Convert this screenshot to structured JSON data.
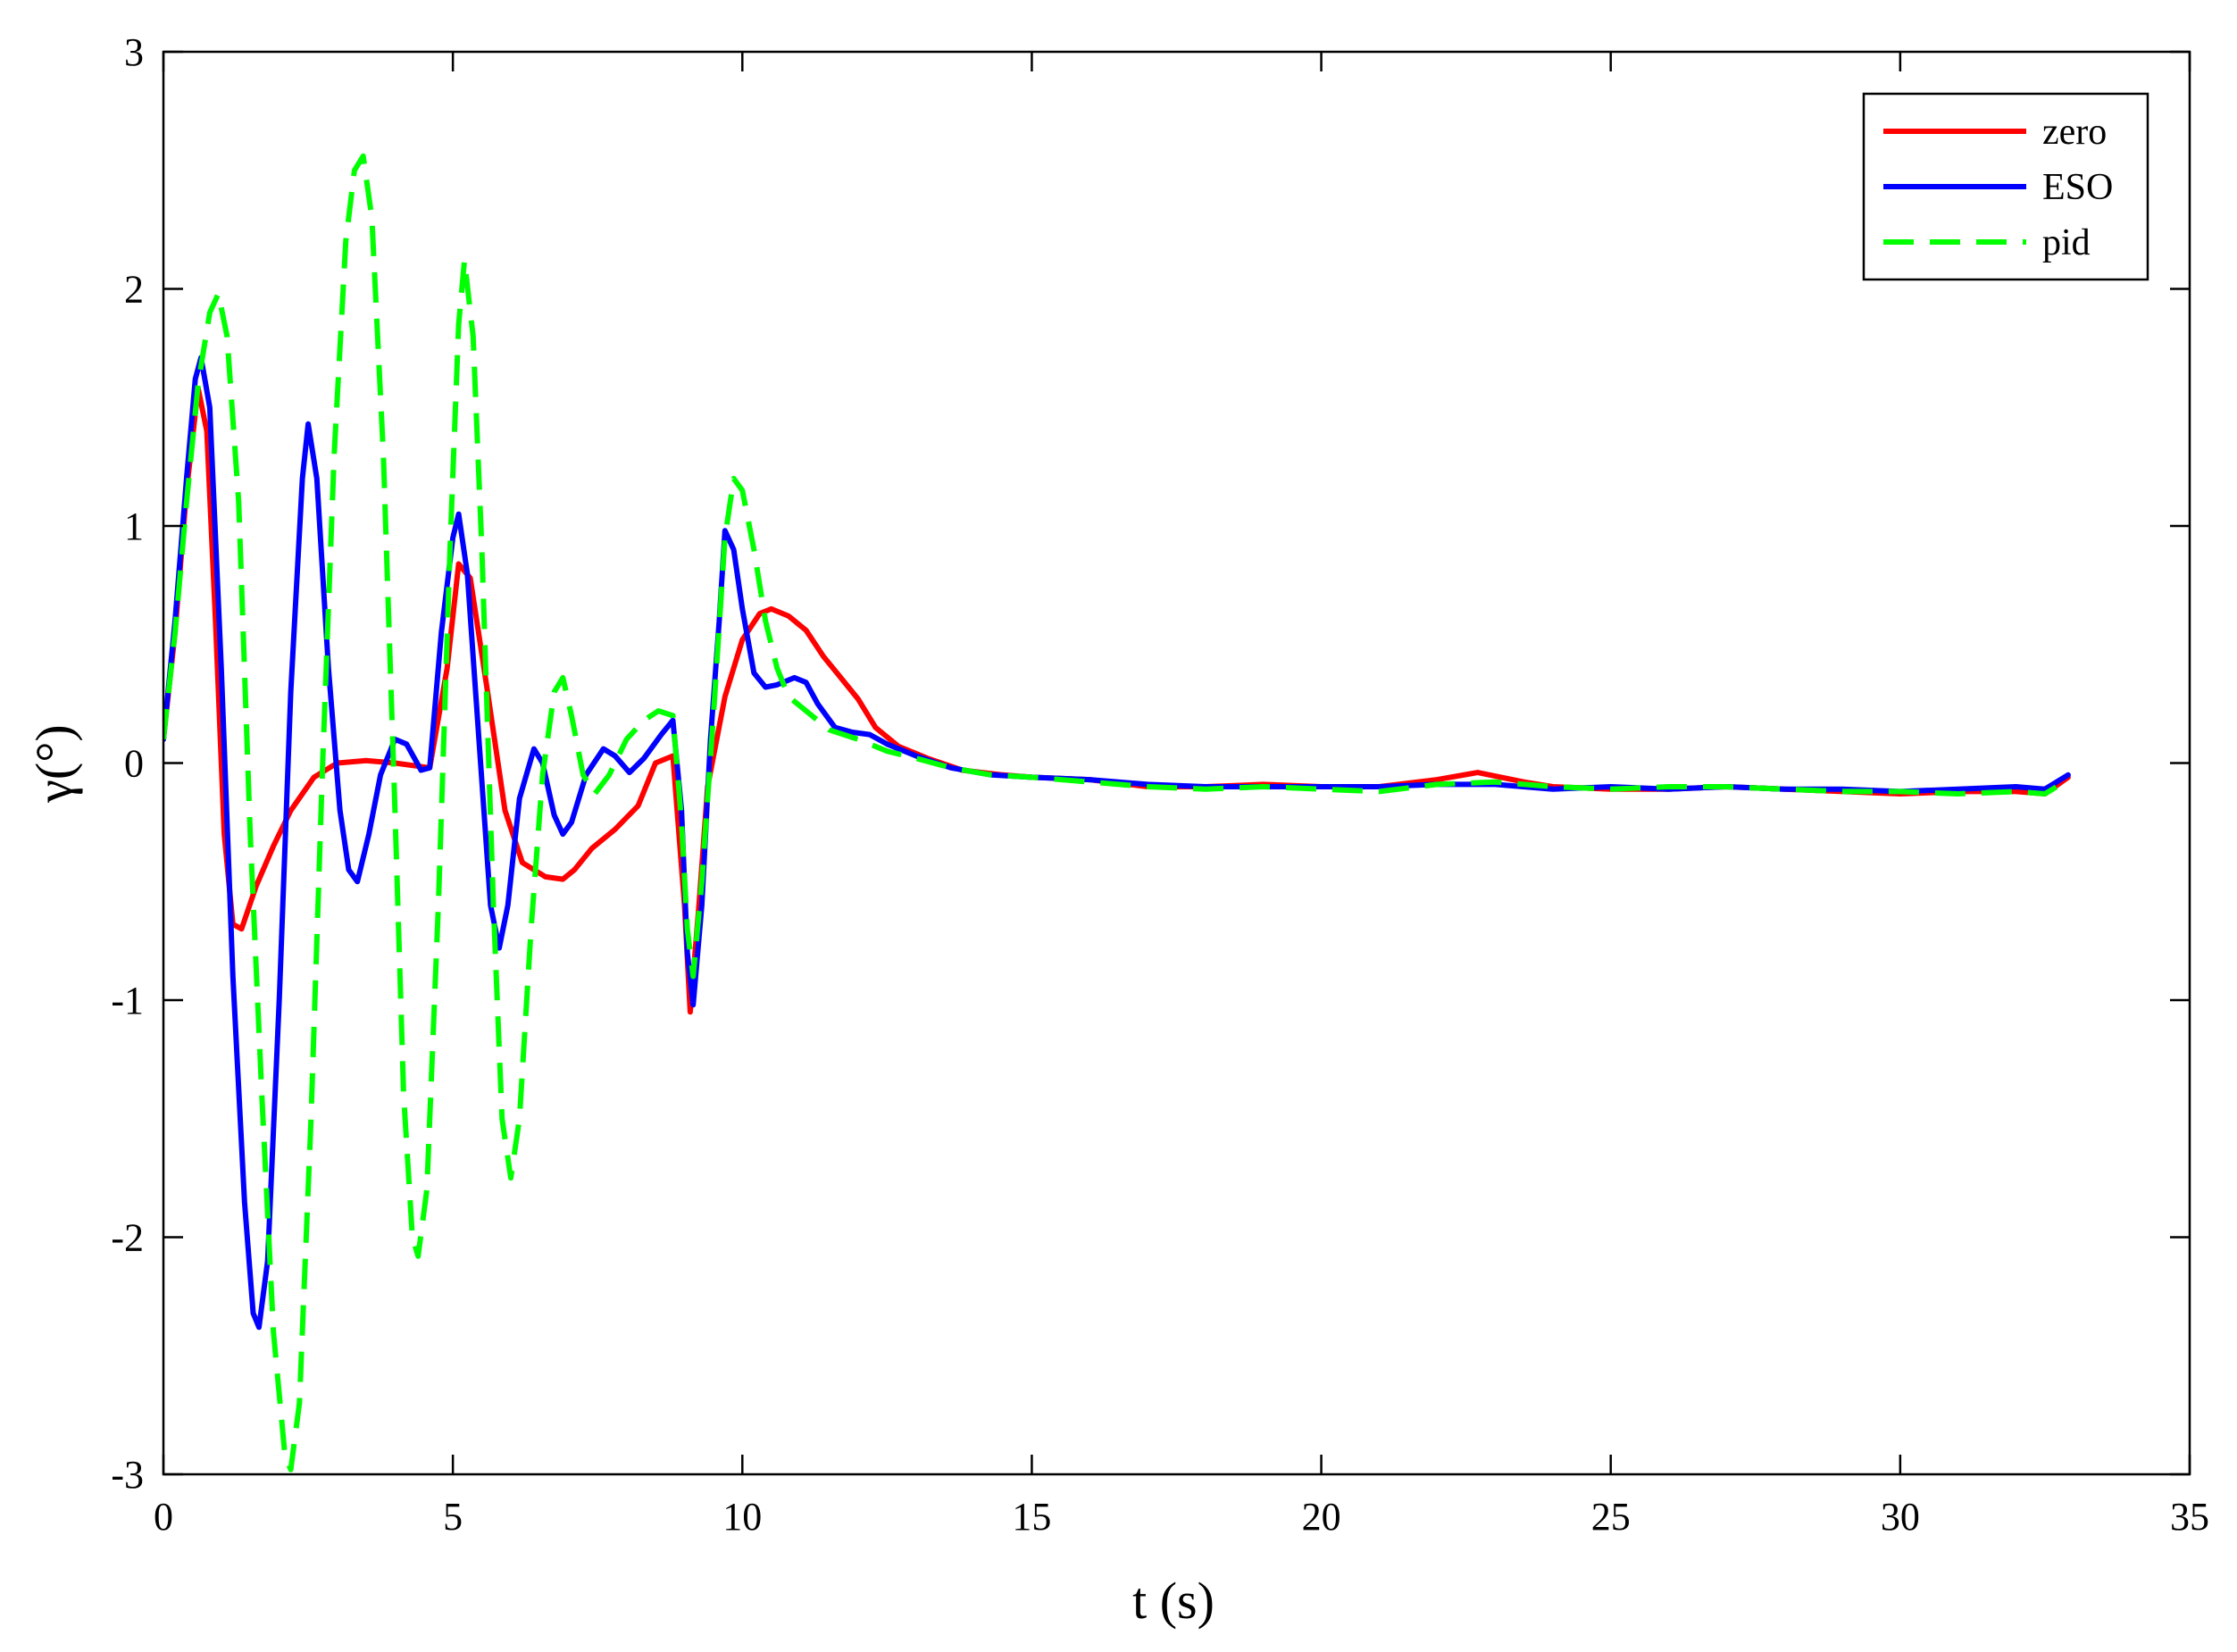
{
  "chart_data": {
    "type": "line",
    "title": "",
    "xlabel": "t (s)",
    "ylabel": "γ(°)",
    "xlim": [
      0,
      35
    ],
    "ylim": [
      -3,
      3
    ],
    "xticks": [
      0,
      5,
      10,
      15,
      20,
      25,
      30,
      35
    ],
    "yticks": [
      -3,
      -2,
      -1,
      0,
      1,
      2,
      3
    ],
    "xtick_labels": [
      "0",
      "5",
      "10",
      "15",
      "20",
      "25",
      "30",
      "35"
    ],
    "ytick_labels": [
      "-3",
      "-2",
      "-1",
      "0",
      "1",
      "2",
      "3"
    ],
    "grid": false,
    "legend_position": "top-right",
    "series": [
      {
        "name": "zero",
        "color": "#ff0000",
        "style": "solid",
        "points": [
          [
            0,
            0.1
          ],
          [
            0.2,
            0.55
          ],
          [
            0.4,
            1.15
          ],
          [
            0.6,
            1.58
          ],
          [
            0.75,
            1.4
          ],
          [
            0.9,
            0.6
          ],
          [
            1.05,
            -0.3
          ],
          [
            1.2,
            -0.68
          ],
          [
            1.35,
            -0.7
          ],
          [
            1.6,
            -0.52
          ],
          [
            1.9,
            -0.35
          ],
          [
            2.2,
            -0.2
          ],
          [
            2.6,
            -0.06
          ],
          [
            3.0,
            0.0
          ],
          [
            3.5,
            0.01
          ],
          [
            4.0,
            0.0
          ],
          [
            4.6,
            -0.02
          ],
          [
            4.9,
            0.4
          ],
          [
            5.1,
            0.84
          ],
          [
            5.3,
            0.78
          ],
          [
            5.6,
            0.3
          ],
          [
            5.9,
            -0.2
          ],
          [
            6.2,
            -0.42
          ],
          [
            6.6,
            -0.48
          ],
          [
            6.9,
            -0.49
          ],
          [
            7.1,
            -0.45
          ],
          [
            7.4,
            -0.36
          ],
          [
            7.8,
            -0.28
          ],
          [
            8.2,
            -0.18
          ],
          [
            8.5,
            0.0
          ],
          [
            8.8,
            0.03
          ],
          [
            9.0,
            -0.6
          ],
          [
            9.1,
            -1.05
          ],
          [
            9.25,
            -0.6
          ],
          [
            9.4,
            -0.1
          ],
          [
            9.7,
            0.28
          ],
          [
            10.0,
            0.52
          ],
          [
            10.3,
            0.63
          ],
          [
            10.5,
            0.65
          ],
          [
            10.8,
            0.62
          ],
          [
            11.1,
            0.56
          ],
          [
            11.4,
            0.45
          ],
          [
            11.7,
            0.36
          ],
          [
            12.0,
            0.27
          ],
          [
            12.3,
            0.15
          ],
          [
            12.7,
            0.07
          ],
          [
            13.2,
            0.02
          ],
          [
            13.8,
            -0.03
          ],
          [
            14.5,
            -0.05
          ],
          [
            15,
            -0.06
          ],
          [
            16,
            -0.07
          ],
          [
            17,
            -0.1
          ],
          [
            18,
            -0.1
          ],
          [
            19,
            -0.09
          ],
          [
            20,
            -0.1
          ],
          [
            21,
            -0.1
          ],
          [
            22,
            -0.07
          ],
          [
            22.7,
            -0.04
          ],
          [
            23.5,
            -0.08
          ],
          [
            24,
            -0.1
          ],
          [
            25,
            -0.11
          ],
          [
            26,
            -0.11
          ],
          [
            27,
            -0.1
          ],
          [
            28,
            -0.11
          ],
          [
            29,
            -0.12
          ],
          [
            30,
            -0.13
          ],
          [
            31,
            -0.12
          ],
          [
            32,
            -0.12
          ],
          [
            32.5,
            -0.13
          ],
          [
            32.9,
            -0.06
          ]
        ]
      },
      {
        "name": "ESO",
        "color": "#0000ff",
        "style": "solid",
        "points": [
          [
            0,
            0.1
          ],
          [
            0.2,
            0.6
          ],
          [
            0.4,
            1.2
          ],
          [
            0.55,
            1.62
          ],
          [
            0.65,
            1.71
          ],
          [
            0.8,
            1.5
          ],
          [
            1.0,
            0.4
          ],
          [
            1.2,
            -0.9
          ],
          [
            1.4,
            -1.85
          ],
          [
            1.55,
            -2.32
          ],
          [
            1.65,
            -2.38
          ],
          [
            1.8,
            -2.1
          ],
          [
            2.0,
            -1.0
          ],
          [
            2.2,
            0.3
          ],
          [
            2.4,
            1.2
          ],
          [
            2.5,
            1.43
          ],
          [
            2.65,
            1.2
          ],
          [
            2.85,
            0.4
          ],
          [
            3.05,
            -0.2
          ],
          [
            3.2,
            -0.45
          ],
          [
            3.35,
            -0.5
          ],
          [
            3.55,
            -0.3
          ],
          [
            3.75,
            -0.05
          ],
          [
            4.0,
            0.1
          ],
          [
            4.2,
            0.08
          ],
          [
            4.45,
            -0.03
          ],
          [
            4.6,
            -0.02
          ],
          [
            4.8,
            0.55
          ],
          [
            5.0,
            0.95
          ],
          [
            5.1,
            1.05
          ],
          [
            5.25,
            0.8
          ],
          [
            5.45,
            0.1
          ],
          [
            5.65,
            -0.6
          ],
          [
            5.8,
            -0.78
          ],
          [
            5.95,
            -0.6
          ],
          [
            6.15,
            -0.15
          ],
          [
            6.4,
            0.06
          ],
          [
            6.55,
            0.0
          ],
          [
            6.75,
            -0.22
          ],
          [
            6.9,
            -0.3
          ],
          [
            7.05,
            -0.25
          ],
          [
            7.3,
            -0.05
          ],
          [
            7.6,
            0.06
          ],
          [
            7.8,
            0.03
          ],
          [
            8.05,
            -0.04
          ],
          [
            8.3,
            0.02
          ],
          [
            8.6,
            0.12
          ],
          [
            8.8,
            0.18
          ],
          [
            8.95,
            -0.2
          ],
          [
            9.05,
            -0.8
          ],
          [
            9.15,
            -1.02
          ],
          [
            9.3,
            -0.6
          ],
          [
            9.45,
            0.1
          ],
          [
            9.6,
            0.6
          ],
          [
            9.7,
            0.98
          ],
          [
            9.85,
            0.9
          ],
          [
            10.0,
            0.65
          ],
          [
            10.2,
            0.38
          ],
          [
            10.4,
            0.32
          ],
          [
            10.6,
            0.33
          ],
          [
            10.9,
            0.36
          ],
          [
            11.1,
            0.34
          ],
          [
            11.3,
            0.25
          ],
          [
            11.6,
            0.15
          ],
          [
            11.9,
            0.13
          ],
          [
            12.2,
            0.12
          ],
          [
            12.5,
            0.08
          ],
          [
            13.0,
            0.03
          ],
          [
            13.6,
            -0.02
          ],
          [
            14.3,
            -0.05
          ],
          [
            15,
            -0.06
          ],
          [
            16,
            -0.07
          ],
          [
            17,
            -0.09
          ],
          [
            18,
            -0.1
          ],
          [
            19,
            -0.1
          ],
          [
            20,
            -0.1
          ],
          [
            21,
            -0.1
          ],
          [
            22,
            -0.09
          ],
          [
            23,
            -0.09
          ],
          [
            24,
            -0.11
          ],
          [
            25,
            -0.1
          ],
          [
            26,
            -0.11
          ],
          [
            27,
            -0.1
          ],
          [
            28,
            -0.11
          ],
          [
            29,
            -0.11
          ],
          [
            30,
            -0.12
          ],
          [
            31,
            -0.11
          ],
          [
            32,
            -0.1
          ],
          [
            32.5,
            -0.11
          ],
          [
            32.9,
            -0.05
          ]
        ]
      },
      {
        "name": "pid",
        "color": "#00ff00",
        "style": "dashed",
        "points": [
          [
            0,
            0.1
          ],
          [
            0.2,
            0.55
          ],
          [
            0.4,
            1.1
          ],
          [
            0.6,
            1.6
          ],
          [
            0.8,
            1.9
          ],
          [
            0.95,
            1.98
          ],
          [
            1.1,
            1.8
          ],
          [
            1.3,
            1.1
          ],
          [
            1.5,
            -0.3
          ],
          [
            1.7,
            -1.4
          ],
          [
            1.9,
            -2.4
          ],
          [
            2.1,
            -2.92
          ],
          [
            2.2,
            -2.98
          ],
          [
            2.35,
            -2.7
          ],
          [
            2.55,
            -1.5
          ],
          [
            2.75,
            0.0
          ],
          [
            2.95,
            1.3
          ],
          [
            3.15,
            2.2
          ],
          [
            3.3,
            2.5
          ],
          [
            3.45,
            2.56
          ],
          [
            3.6,
            2.3
          ],
          [
            3.8,
            1.3
          ],
          [
            4.0,
            -0.2
          ],
          [
            4.15,
            -1.4
          ],
          [
            4.3,
            -2.0
          ],
          [
            4.4,
            -2.08
          ],
          [
            4.55,
            -1.8
          ],
          [
            4.75,
            -0.6
          ],
          [
            4.95,
            0.9
          ],
          [
            5.1,
            1.85
          ],
          [
            5.2,
            2.12
          ],
          [
            5.35,
            1.8
          ],
          [
            5.5,
            0.9
          ],
          [
            5.7,
            -0.6
          ],
          [
            5.85,
            -1.5
          ],
          [
            6.0,
            -1.75
          ],
          [
            6.15,
            -1.5
          ],
          [
            6.35,
            -0.7
          ],
          [
            6.55,
            -0.05
          ],
          [
            6.75,
            0.3
          ],
          [
            6.9,
            0.36
          ],
          [
            7.05,
            0.2
          ],
          [
            7.25,
            -0.05
          ],
          [
            7.45,
            -0.13
          ],
          [
            7.7,
            -0.05
          ],
          [
            8.0,
            0.1
          ],
          [
            8.3,
            0.18
          ],
          [
            8.55,
            0.22
          ],
          [
            8.8,
            0.2
          ],
          [
            8.95,
            -0.25
          ],
          [
            9.05,
            -0.7
          ],
          [
            9.15,
            -0.9
          ],
          [
            9.3,
            -0.5
          ],
          [
            9.5,
            0.2
          ],
          [
            9.7,
            0.95
          ],
          [
            9.85,
            1.2
          ],
          [
            10.0,
            1.15
          ],
          [
            10.2,
            0.9
          ],
          [
            10.4,
            0.6
          ],
          [
            10.6,
            0.4
          ],
          [
            10.8,
            0.28
          ],
          [
            11.1,
            0.22
          ],
          [
            11.5,
            0.14
          ],
          [
            12.0,
            0.1
          ],
          [
            12.5,
            0.05
          ],
          [
            13.0,
            0.02
          ],
          [
            13.6,
            -0.02
          ],
          [
            14.3,
            -0.05
          ],
          [
            15,
            -0.06
          ],
          [
            16,
            -0.08
          ],
          [
            17,
            -0.1
          ],
          [
            18,
            -0.11
          ],
          [
            19,
            -0.1
          ],
          [
            20,
            -0.11
          ],
          [
            21,
            -0.12
          ],
          [
            22,
            -0.09
          ],
          [
            23,
            -0.08
          ],
          [
            24,
            -0.1
          ],
          [
            25,
            -0.11
          ],
          [
            26,
            -0.1
          ],
          [
            27,
            -0.1
          ],
          [
            28,
            -0.11
          ],
          [
            29,
            -0.12
          ],
          [
            30,
            -0.12
          ],
          [
            31,
            -0.13
          ],
          [
            32,
            -0.12
          ],
          [
            32.5,
            -0.13
          ],
          [
            32.9,
            -0.07
          ]
        ]
      }
    ]
  }
}
